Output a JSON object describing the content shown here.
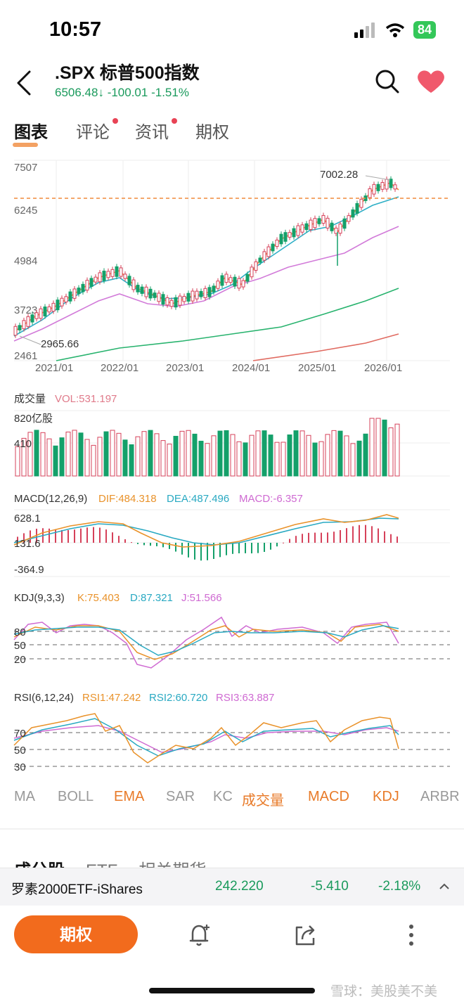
{
  "status_bar": {
    "time": "10:57",
    "battery": "84"
  },
  "header": {
    "title": ".SPX  标普500指数",
    "price": "6506.48",
    "arrow": "↓",
    "change": "-100.01",
    "change_pct": "-1.51%"
  },
  "tabs": [
    {
      "label": "图表",
      "active": true,
      "dot": false
    },
    {
      "label": "评论",
      "active": false,
      "dot": true
    },
    {
      "label": "资讯",
      "active": false,
      "dot": true
    },
    {
      "label": "期权",
      "active": false,
      "dot": false
    }
  ],
  "price_chart": {
    "y_ticks": [
      "7507",
      "6245",
      "4984",
      "3723",
      "2461"
    ],
    "x_ticks": [
      "2021/01",
      "2022/01",
      "2023/01",
      "2024/01",
      "2025/01",
      "2026/01"
    ],
    "high_label": "7002.28",
    "low_label": "2965.66"
  },
  "volume": {
    "title": "成交量",
    "vol_label": "VOL:531.197",
    "y_top": "820亿股",
    "y_mid": "410"
  },
  "macd": {
    "title": "MACD(12,26,9)",
    "dif": "DIF:484.318",
    "dea": "DEA:487.496",
    "macd": "MACD:-6.357",
    "y_ticks": [
      "628.1",
      "131.6",
      "-364.9"
    ]
  },
  "kdj": {
    "title": "KDJ(9,3,3)",
    "k": "K:75.403",
    "d": "D:87.321",
    "j": "J:51.566",
    "levels": [
      "80",
      "50",
      "20"
    ]
  },
  "rsi": {
    "title": "RSI(6,12,24)",
    "rsi1": "RSI1:47.242",
    "rsi2": "RSI2:60.720",
    "rsi3": "RSI3:63.887",
    "levels": [
      "70",
      "50",
      "30"
    ]
  },
  "indicator_tabs": [
    {
      "label": "MA",
      "active": false
    },
    {
      "label": "BOLL",
      "active": false
    },
    {
      "label": "EMA",
      "active": true
    },
    {
      "label": "SAR",
      "active": false
    },
    {
      "label": "KC",
      "active": false
    },
    {
      "label": "成交量",
      "active": true
    },
    {
      "label": "MACD",
      "active": true
    },
    {
      "label": "KDJ",
      "active": true
    },
    {
      "label": "ARBR",
      "active": false
    }
  ],
  "section_tabs": [
    "成分股",
    "ETF",
    "相关期货"
  ],
  "ticker_bar": {
    "name": "罗素2000ETF-iShares",
    "price": "242.220",
    "change": "-5.410",
    "change_pct": "-2.18%"
  },
  "bottom_bar": {
    "options_label": "期权"
  },
  "watermark": "雪球：美股美不美",
  "colors": {
    "up": "#d6415a",
    "down": "#14a06a",
    "dif": "#e9922a",
    "dea": "#29a9c2",
    "macd": "#cf6ad2",
    "accent": "#f26b1d"
  }
}
